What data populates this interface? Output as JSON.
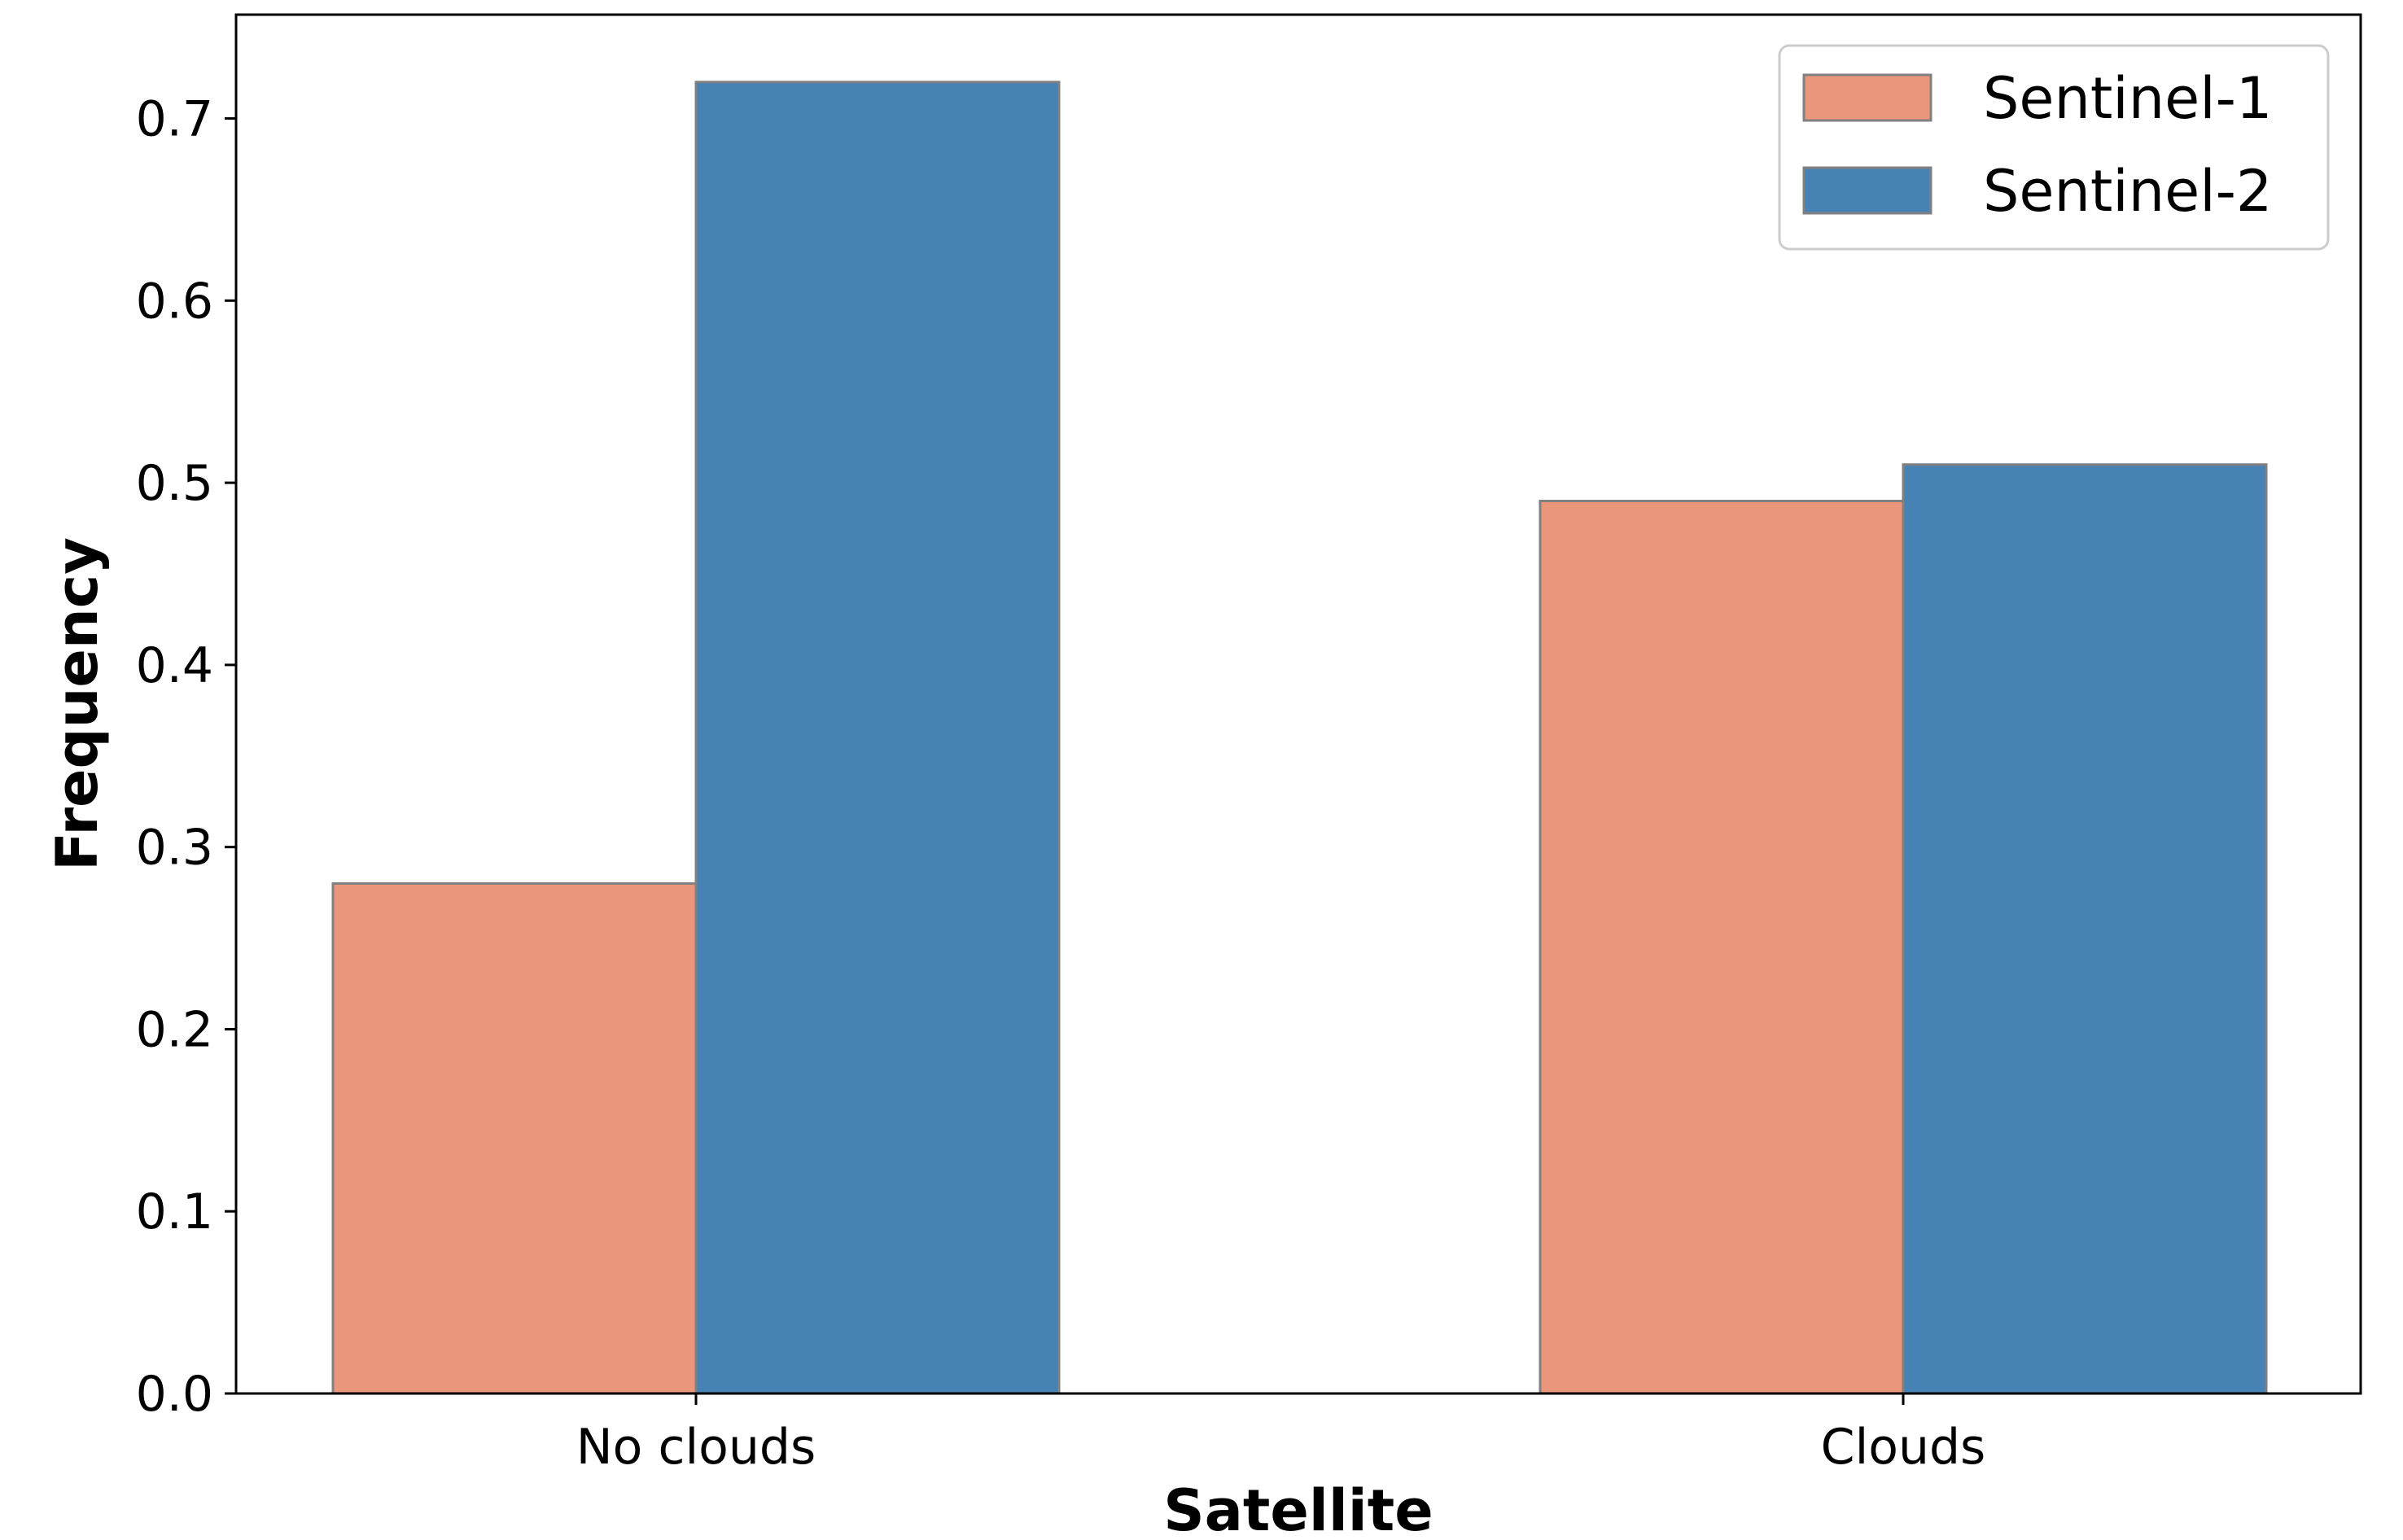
{
  "chart_data": {
    "type": "bar",
    "title": "",
    "xlabel": "Satellite",
    "ylabel": "Frequency",
    "categories": [
      "No clouds",
      "Clouds"
    ],
    "series": [
      {
        "name": "Sentinel-1",
        "values": [
          0.28,
          0.49
        ],
        "color": "#E9967A"
      },
      {
        "name": "Sentinel-2",
        "values": [
          0.72,
          0.51
        ],
        "color": "#4682B4"
      }
    ],
    "ylim": [
      0,
      0.757
    ],
    "yticks": [
      "0.0",
      "0.1",
      "0.2",
      "0.3",
      "0.4",
      "0.5",
      "0.6",
      "0.7"
    ],
    "ytick_values": [
      0,
      0.1,
      0.2,
      0.3,
      0.4,
      0.5,
      0.6,
      0.7
    ],
    "grid": false,
    "legend_position": "top-right",
    "bar_edge_color": "#808080"
  }
}
